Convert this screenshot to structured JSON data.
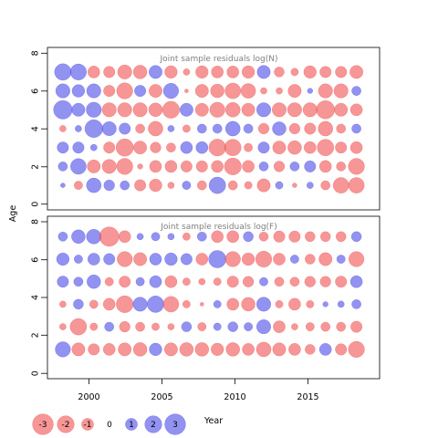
{
  "chart_data": {
    "type": "scatter",
    "subtype": "bubble",
    "ylabel": "Age",
    "xlabel": "Year",
    "x_ticks": [
      "2000",
      "2005",
      "2010",
      "2015"
    ],
    "y_ticks": [
      "0",
      "2",
      "4",
      "6",
      "8"
    ],
    "xlim": [
      1998,
      2019.5
    ],
    "colors": {
      "positive": "#4a4ae8",
      "negative": "#f05050"
    },
    "years": [
      1999,
      2000,
      2001,
      2002,
      2003,
      2004,
      2005,
      2006,
      2007,
      2008,
      2009,
      2010,
      2011,
      2012,
      2013,
      2014,
      2015,
      2016,
      2017,
      2018
    ],
    "panels": [
      {
        "title": "Joint sample residuals log(N)",
        "ylim": [
          -0.3,
          8.3
        ],
        "ages": [
          1,
          2,
          3,
          4,
          5,
          6,
          7
        ],
        "residuals": [
          [
            0.15,
            -0.5,
            1.5,
            0.8,
            0.6,
            -0.9,
            -1.1,
            -0.3,
            0.5,
            -0.6,
            1.9,
            -0.6,
            -0.4,
            -1.2,
            0.4,
            -0.15,
            0.3,
            -0.6,
            -1.7,
            -1.7
          ],
          [
            0.6,
            1.7,
            -1.2,
            -1.4,
            -1.8,
            -0.2,
            -1.0,
            -1.0,
            -0.9,
            -0.9,
            -1.0,
            -2.0,
            -1.0,
            0.6,
            -0.8,
            0.6,
            0.9,
            -1.0,
            -0.6,
            -1.8
          ],
          [
            0.9,
            0.9,
            0.3,
            -0.9,
            -2.1,
            -1.2,
            -0.8,
            -0.6,
            1.0,
            1.0,
            -2.0,
            -1.9,
            -0.5,
            0.9,
            -1.2,
            -1.3,
            -1.0,
            -1.9,
            -0.9,
            -1.0
          ],
          [
            -0.3,
            0.3,
            2.2,
            1.4,
            0.9,
            -0.6,
            -1.5,
            0.3,
            -0.4,
            0.6,
            0.6,
            1.5,
            0.6,
            -0.8,
            1.3,
            -0.8,
            -0.9,
            -1.5,
            -0.6,
            0.6
          ],
          [
            2.4,
            1.2,
            1.6,
            -1.4,
            -1.4,
            -1.4,
            -1.3,
            -2.0,
            1.2,
            -1.2,
            -1.6,
            -1.5,
            -1.2,
            1.4,
            -1.4,
            -1.4,
            -1.4,
            -2.3,
            -1.2,
            -1.0
          ],
          [
            1.4,
            1.1,
            1.4,
            -0.9,
            -1.8,
            0.9,
            -1.2,
            1.6,
            -0.1,
            -1.2,
            -1.3,
            -1.7,
            -1.5,
            -0.3,
            -0.3,
            -1.2,
            0.2,
            -1.4,
            -1.4,
            0.6
          ],
          [
            1.9,
            1.8,
            -1.0,
            -0.9,
            -1.4,
            -1.3,
            1.2,
            -1.1,
            -0.3,
            -1.1,
            -1.0,
            -1.0,
            -1.1,
            1.2,
            -0.7,
            -0.4,
            -1.1,
            -0.9,
            -0.9,
            -1.2
          ]
        ]
      },
      {
        "title": "Joint sample residuals log(F)",
        "ylim": [
          -0.3,
          6.9
        ],
        "ages": [
          1,
          2,
          3,
          4,
          5,
          6
        ],
        "residuals": [
          [
            1.6,
            -1.2,
            -0.9,
            -1.0,
            -1.2,
            -1.3,
            1.1,
            -1.2,
            -1.3,
            -1.3,
            -1.1,
            -1.3,
            -1.0,
            -1.5,
            -1.2,
            -1.0,
            -0.7,
            1.0,
            -0.9,
            -1.8
          ],
          [
            -0.3,
            -1.9,
            -0.4,
            0.6,
            -0.8,
            -0.6,
            -0.4,
            -0.3,
            0.7,
            -0.5,
            0.4,
            0.7,
            0.5,
            1.4,
            -1.0,
            -0.3,
            -0.5,
            -0.6,
            -0.6,
            -0.9
          ],
          [
            -0.3,
            0.7,
            -0.5,
            -1.0,
            -2.0,
            1.4,
            1.9,
            -1.7,
            -0.4,
            -0.1,
            0.4,
            -1.0,
            -1.3,
            1.4,
            -0.4,
            -1.0,
            -0.4,
            0.2,
            0.3,
            0.6
          ],
          [
            0.9,
            0.6,
            1.3,
            -0.5,
            -0.9,
            0.5,
            1.0,
            -1.0,
            -0.4,
            -0.3,
            -0.4,
            -0.9,
            -0.8,
            0.5,
            -0.6,
            -0.6,
            -0.8,
            -0.8,
            -0.9,
            1.0
          ],
          [
            1.1,
            0.5,
            1.0,
            0.9,
            -1.6,
            -1.2,
            1.0,
            1.1,
            0.9,
            -1.0,
            2.1,
            -1.6,
            -1.1,
            -1.8,
            -1.0,
            0.5,
            -0.7,
            -1.2,
            0.5,
            -1.6
          ],
          [
            0.6,
            1.3,
            1.5,
            -2.6,
            -1.0,
            0.3,
            0.5,
            0.3,
            -0.4,
            0.6,
            -1.0,
            -1.0,
            0.7,
            -0.6,
            -0.9,
            -0.9,
            -0.7,
            -0.7,
            -0.7,
            0.7
          ]
        ]
      }
    ],
    "legend": {
      "values": [
        -3,
        -2,
        -1,
        0,
        1,
        2,
        3
      ],
      "labels": [
        "-3",
        "-2",
        "-1",
        "0",
        "1",
        "2",
        "3"
      ]
    }
  }
}
